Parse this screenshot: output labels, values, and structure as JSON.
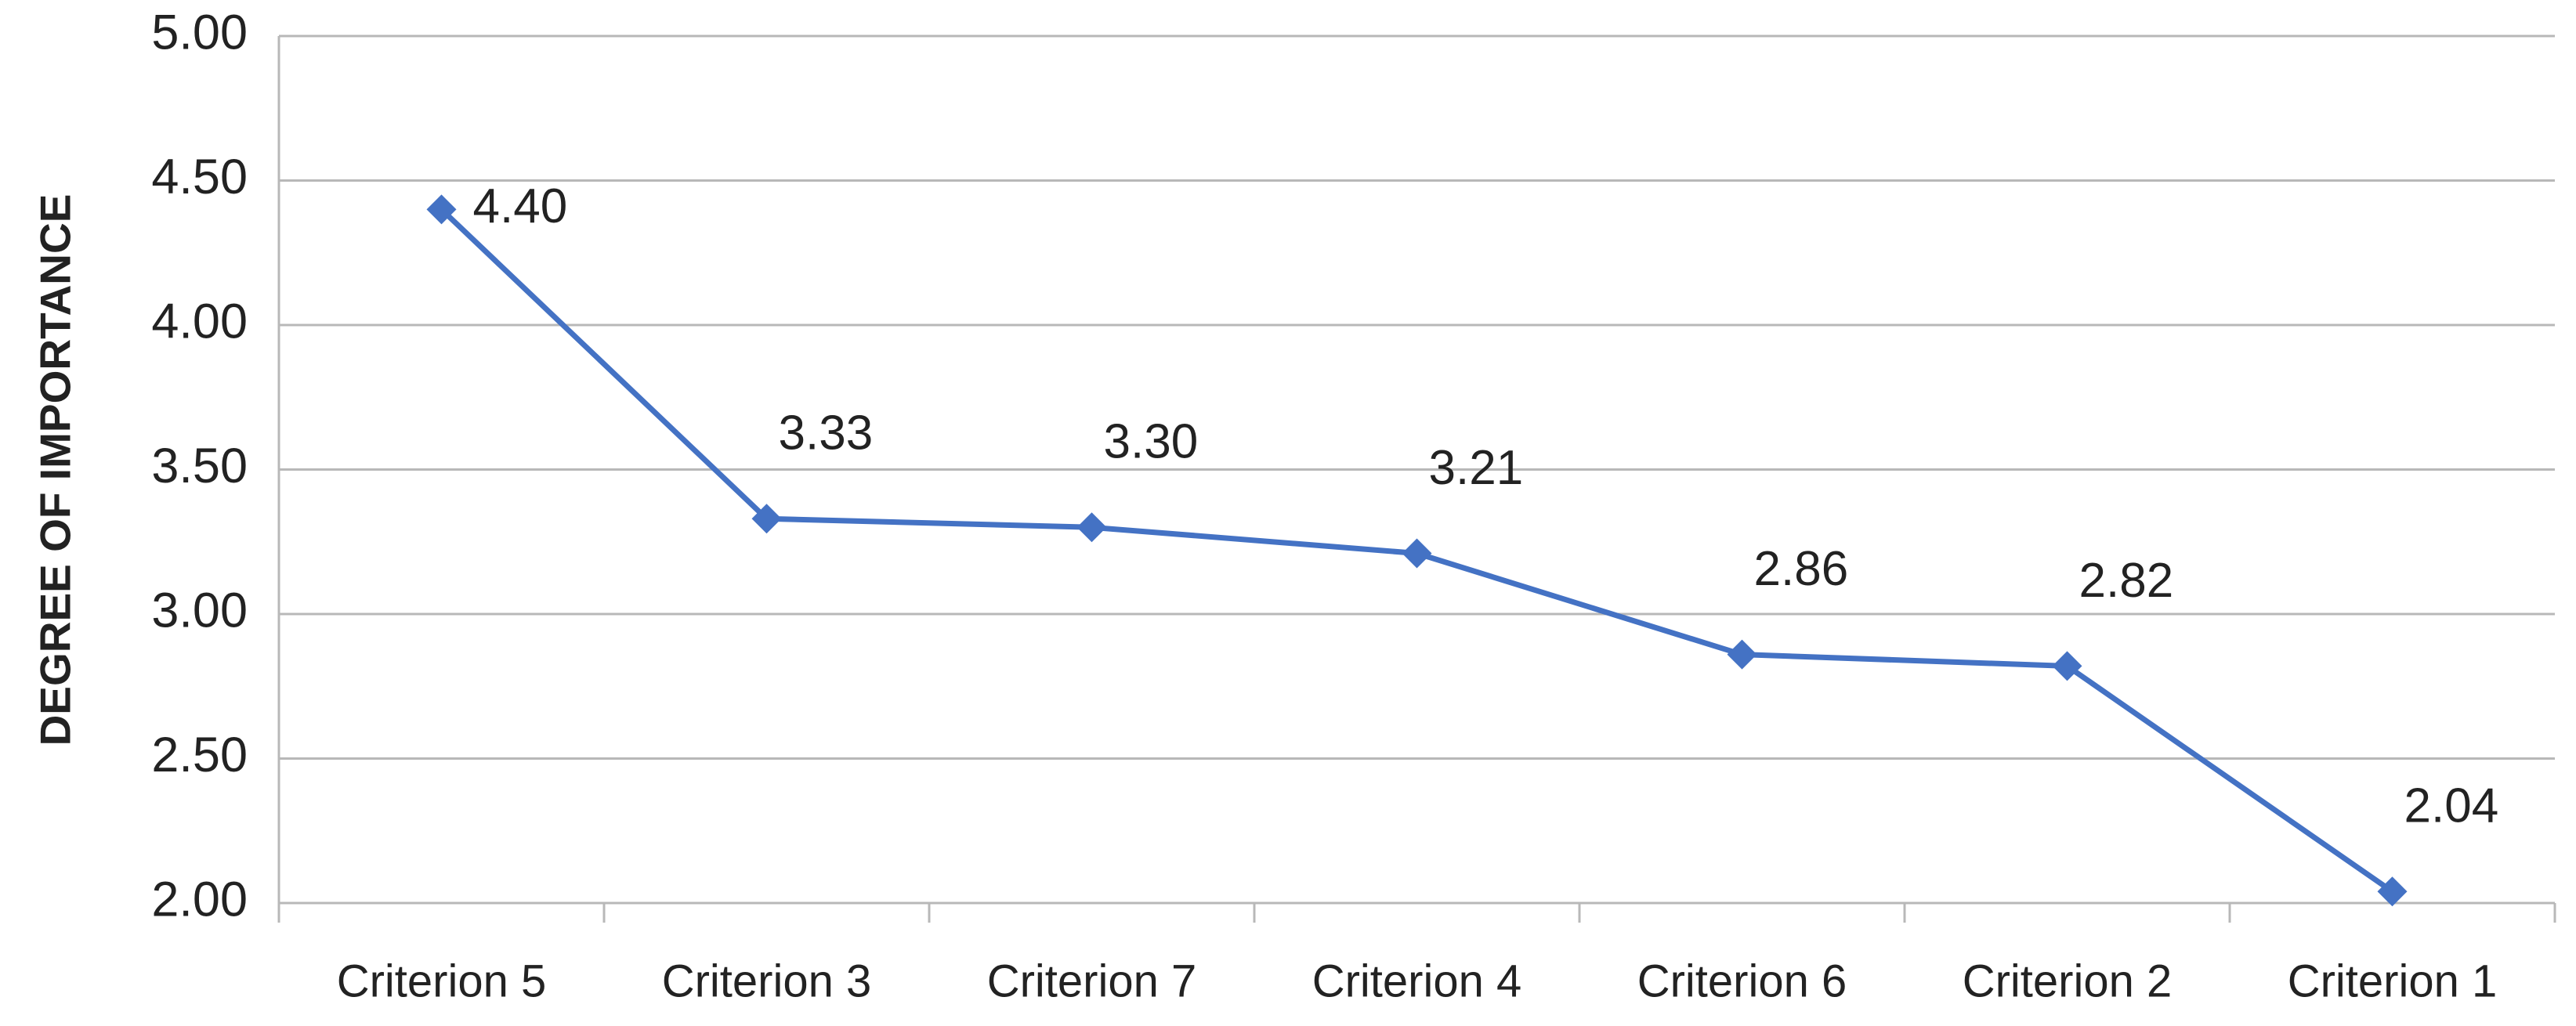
{
  "chart_data": {
    "type": "line",
    "y_label": "DEGREE OF IMPORTANCE",
    "categories": [
      "Criterion 5",
      "Criterion 3",
      "Criterion 7",
      "Criterion 4",
      "Criterion 6",
      "Criterion 2",
      "Criterion 1"
    ],
    "series": [
      {
        "name": "Degree of importance",
        "color": "#4472c4",
        "values": [
          4.4,
          3.33,
          3.3,
          3.21,
          2.86,
          2.82,
          2.04
        ],
        "value_labels": [
          "4.40",
          "3.33",
          "3.30",
          "3.21",
          "2.86",
          "2.82",
          "2.04"
        ]
      }
    ],
    "ylim": [
      2,
      5
    ],
    "yticks": [
      {
        "value": 2,
        "label": "2.00"
      },
      {
        "value": 2.5,
        "label": "2.50"
      },
      {
        "value": 3,
        "label": "3.00"
      },
      {
        "value": 3.5,
        "label": "3.50"
      },
      {
        "value": 4,
        "label": "4.00"
      },
      {
        "value": 4.5,
        "label": "4.50"
      },
      {
        "value": 5,
        "label": "5.00"
      }
    ],
    "grid": true
  }
}
